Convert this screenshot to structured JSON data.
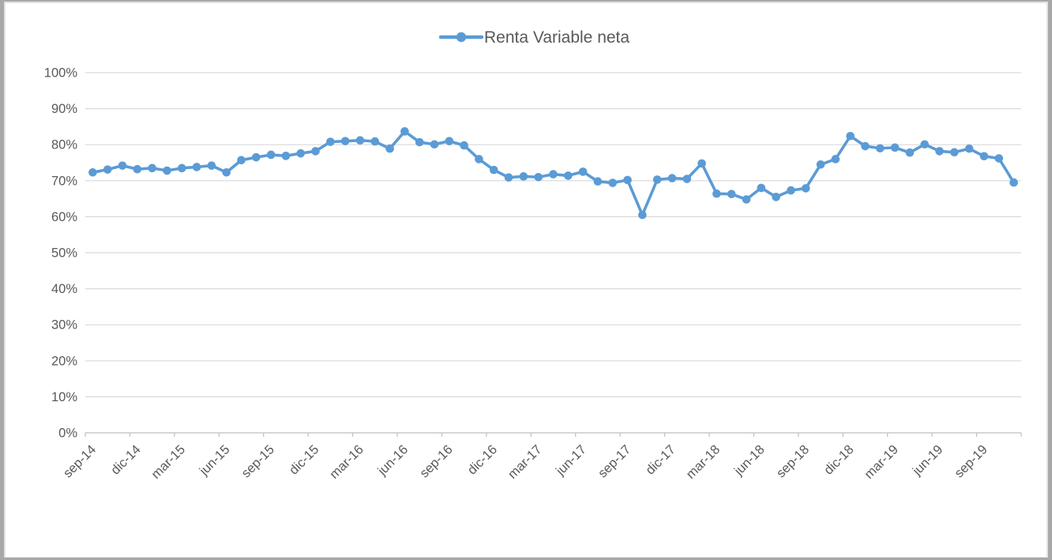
{
  "legend": {
    "label": "Renta Variable neta"
  },
  "colors": {
    "series": "#5B9BD5",
    "text": "#595959",
    "gridline": "#D9D9D9",
    "axis": "#BFBFBF"
  },
  "chart_data": {
    "type": "line",
    "title": "Renta Variable neta",
    "legend_position": "top-center",
    "grid": "horizontal",
    "ylim": [
      0,
      100
    ],
    "y_ticks": [
      0,
      10,
      20,
      30,
      40,
      50,
      60,
      70,
      80,
      90,
      100
    ],
    "y_tick_suffix": "%",
    "x_label_every": 3,
    "x": [
      "sep-14",
      "oct-14",
      "nov-14",
      "dic-14",
      "ene-15",
      "feb-15",
      "mar-15",
      "abr-15",
      "may-15",
      "jun-15",
      "jul-15",
      "ago-15",
      "sep-15",
      "oct-15",
      "nov-15",
      "dic-15",
      "ene-16",
      "feb-16",
      "mar-16",
      "abr-16",
      "may-16",
      "jun-16",
      "jul-16",
      "ago-16",
      "sep-16",
      "oct-16",
      "nov-16",
      "dic-16",
      "ene-17",
      "feb-17",
      "mar-17",
      "abr-17",
      "may-17",
      "jun-17",
      "jul-17",
      "ago-17",
      "sep-17",
      "oct-17",
      "nov-17",
      "dic-17",
      "ene-18",
      "feb-18",
      "mar-18",
      "abr-18",
      "may-18",
      "jun-18",
      "jul-18",
      "ago-18",
      "sep-18",
      "oct-18",
      "nov-18",
      "dic-18",
      "ene-19",
      "feb-19",
      "mar-19",
      "abr-19",
      "may-19",
      "jun-19",
      "jul-19",
      "ago-19",
      "sep-19",
      "oct-19",
      "nov-19"
    ],
    "x_tick_labels": [
      "sep-14",
      "dic-14",
      "mar-15",
      "jun-15",
      "sep-15",
      "dic-15",
      "mar-16",
      "jun-16",
      "sep-16",
      "dic-16",
      "mar-17",
      "jun-17",
      "sep-17",
      "dic-17",
      "mar-18",
      "jun-18",
      "sep-18",
      "dic-18",
      "mar-19",
      "jun-19",
      "sep-19"
    ],
    "series": [
      {
        "name": "Renta Variable neta",
        "color": "#5B9BD5",
        "values": [
          72.3,
          73.1,
          74.2,
          73.2,
          73.5,
          72.8,
          73.5,
          73.8,
          74.2,
          72.3,
          75.7,
          76.5,
          77.2,
          76.9,
          77.6,
          78.2,
          80.8,
          81.0,
          81.2,
          80.9,
          78.9,
          83.7,
          80.7,
          80.1,
          81.0,
          79.8,
          76.0,
          73.0,
          70.9,
          71.2,
          71.0,
          71.8,
          71.4,
          72.5,
          69.8,
          69.4,
          70.2,
          60.5,
          70.3,
          70.7,
          70.5,
          74.8,
          66.4,
          66.3,
          64.8,
          68.0,
          65.5,
          67.3,
          67.9,
          74.5,
          76.0,
          82.4,
          79.6,
          79.0,
          79.2,
          77.8,
          80.1,
          78.2,
          77.9,
          78.9,
          76.8,
          76.2,
          69.5
        ]
      }
    ]
  }
}
